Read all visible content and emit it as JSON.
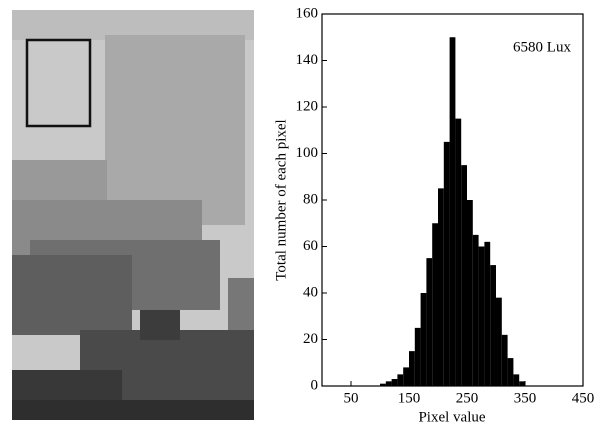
{
  "chart_data": {
    "type": "histogram",
    "annotation": "6580 Lux",
    "xlabel": "Pixel value",
    "ylabel": "Total number of each pixel",
    "bins": [
      100,
      110,
      120,
      130,
      140,
      150,
      160,
      170,
      180,
      190,
      200,
      210,
      220,
      230,
      240,
      250,
      260,
      270,
      280,
      290,
      300,
      310,
      320,
      330,
      340,
      350
    ],
    "values": [
      1,
      2,
      3,
      5,
      8,
      15,
      25,
      40,
      55,
      70,
      85,
      105,
      150,
      115,
      95,
      80,
      65,
      60,
      62,
      52,
      38,
      22,
      12,
      5,
      2
    ],
    "color": "#000000",
    "xlim": [
      0,
      450
    ],
    "xticks": [
      50,
      150,
      250,
      350,
      450
    ],
    "ylim": [
      0,
      160
    ],
    "yticks": [
      0,
      20,
      40,
      60,
      80,
      100,
      120,
      140,
      160
    ]
  }
}
